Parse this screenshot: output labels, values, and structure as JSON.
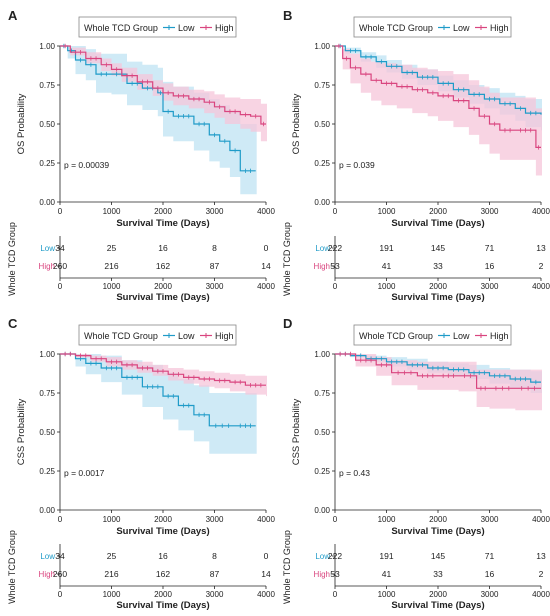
{
  "colors": {
    "low": "#1f9bc8",
    "high": "#d9457f",
    "low_band": "#bfe3f3",
    "high_band": "#f6c6d9",
    "axis": "#222222"
  },
  "chart_data": [
    {
      "panel": "A",
      "type": "line",
      "legend_title": "Whole TCD Group",
      "legend_items": [
        "Low",
        "High"
      ],
      "legend_position": "top",
      "ylabel": "OS Probability",
      "xlabel": "Survival Time (Days)",
      "xlim": [
        0,
        4000
      ],
      "ylim": [
        0,
        1
      ],
      "xticks": [
        "0",
        "1000",
        "2000",
        "3000",
        "4000"
      ],
      "yticks": [
        "0.00",
        "0.25",
        "0.50",
        "0.75",
        "1.00"
      ],
      "pvalue": "p = 0.00039",
      "series": [
        {
          "name": "Low",
          "x": [
            0,
            150,
            300,
            500,
            700,
            1000,
            1300,
            1600,
            1900,
            2000,
            2200,
            2600,
            2900,
            3100,
            3300,
            3500,
            3800
          ],
          "y": [
            1.0,
            0.97,
            0.91,
            0.88,
            0.82,
            0.82,
            0.76,
            0.73,
            0.7,
            0.58,
            0.55,
            0.5,
            0.43,
            0.39,
            0.33,
            0.2,
            0.2
          ],
          "lower": [
            1.0,
            0.92,
            0.82,
            0.78,
            0.7,
            0.69,
            0.62,
            0.59,
            0.55,
            0.42,
            0.39,
            0.33,
            0.26,
            0.22,
            0.16,
            0.05,
            0.05
          ],
          "upper": [
            1.0,
            1.0,
            1.0,
            0.98,
            0.95,
            0.95,
            0.9,
            0.88,
            0.86,
            0.77,
            0.74,
            0.7,
            0.66,
            0.62,
            0.58,
            0.5,
            0.5
          ]
        },
        {
          "name": "High",
          "x": [
            0,
            200,
            500,
            800,
            1000,
            1200,
            1500,
            1800,
            2000,
            2200,
            2500,
            2800,
            3000,
            3200,
            3500,
            3700,
            3900,
            4000
          ],
          "y": [
            1.0,
            0.96,
            0.92,
            0.88,
            0.85,
            0.81,
            0.77,
            0.73,
            0.7,
            0.68,
            0.66,
            0.64,
            0.61,
            0.58,
            0.56,
            0.55,
            0.5,
            0.5
          ],
          "lower": [
            1.0,
            0.94,
            0.89,
            0.84,
            0.81,
            0.77,
            0.72,
            0.68,
            0.65,
            0.62,
            0.6,
            0.57,
            0.54,
            0.5,
            0.47,
            0.45,
            0.39,
            0.39
          ],
          "upper": [
            1.0,
            0.99,
            0.96,
            0.92,
            0.89,
            0.86,
            0.82,
            0.78,
            0.76,
            0.74,
            0.72,
            0.71,
            0.69,
            0.67,
            0.66,
            0.66,
            0.63,
            0.63
          ]
        }
      ],
      "risk_table": {
        "ylabel": "Whole TCD Group",
        "xlabel": "Survival Time (Days)",
        "rows": [
          {
            "label": "Low",
            "counts": [
              "34",
              "25",
              "16",
              "8",
              "0"
            ]
          },
          {
            "label": "High",
            "counts": [
              "260",
              "216",
              "162",
              "87",
              "14"
            ]
          }
        ]
      }
    },
    {
      "panel": "B",
      "type": "line",
      "legend_title": "Whole TCD Group",
      "legend_items": [
        "Low",
        "High"
      ],
      "legend_position": "top",
      "ylabel": "OS Probability",
      "xlabel": "Survival Time (Days)",
      "xlim": [
        0,
        4000
      ],
      "ylim": [
        0,
        1
      ],
      "xticks": [
        "0",
        "1000",
        "2000",
        "3000",
        "4000"
      ],
      "yticks": [
        "0.00",
        "0.25",
        "0.50",
        "0.75",
        "1.00"
      ],
      "pvalue": "p = 0.039",
      "series": [
        {
          "name": "Low",
          "x": [
            0,
            200,
            500,
            800,
            1000,
            1300,
            1600,
            2000,
            2300,
            2600,
            2900,
            3200,
            3500,
            3700,
            4000
          ],
          "y": [
            1.0,
            0.97,
            0.93,
            0.9,
            0.87,
            0.83,
            0.8,
            0.76,
            0.72,
            0.69,
            0.66,
            0.63,
            0.6,
            0.57,
            0.56
          ],
          "lower": [
            1.0,
            0.95,
            0.9,
            0.86,
            0.83,
            0.79,
            0.75,
            0.71,
            0.67,
            0.63,
            0.6,
            0.56,
            0.52,
            0.48,
            0.46
          ],
          "upper": [
            1.0,
            0.99,
            0.96,
            0.94,
            0.91,
            0.88,
            0.85,
            0.81,
            0.78,
            0.75,
            0.73,
            0.7,
            0.68,
            0.66,
            0.66
          ]
        },
        {
          "name": "High",
          "x": [
            0,
            150,
            300,
            500,
            700,
            900,
            1200,
            1500,
            1800,
            2000,
            2300,
            2600,
            2800,
            3000,
            3200,
            3500,
            3900,
            4000
          ],
          "y": [
            1.0,
            0.92,
            0.86,
            0.82,
            0.78,
            0.76,
            0.74,
            0.72,
            0.7,
            0.68,
            0.65,
            0.6,
            0.55,
            0.5,
            0.46,
            0.46,
            0.35,
            0.35
          ],
          "lower": [
            1.0,
            0.85,
            0.76,
            0.7,
            0.65,
            0.62,
            0.6,
            0.57,
            0.55,
            0.52,
            0.48,
            0.43,
            0.37,
            0.31,
            0.27,
            0.27,
            0.17,
            0.17
          ],
          "upper": [
            1.0,
            0.98,
            0.95,
            0.92,
            0.9,
            0.89,
            0.88,
            0.86,
            0.85,
            0.84,
            0.82,
            0.78,
            0.74,
            0.7,
            0.67,
            0.67,
            0.6,
            0.6
          ]
        }
      ],
      "risk_table": {
        "ylabel": "Whole TCD Group",
        "xlabel": "Survival Time (Days)",
        "rows": [
          {
            "label": "Low",
            "counts": [
              "222",
              "191",
              "145",
              "71",
              "13"
            ]
          },
          {
            "label": "High",
            "counts": [
              "53",
              "41",
              "33",
              "16",
              "2"
            ]
          }
        ]
      }
    },
    {
      "panel": "C",
      "type": "line",
      "legend_title": "Whole TCD Group",
      "legend_items": [
        "Low",
        "High"
      ],
      "legend_position": "top",
      "ylabel": "CSS Probability",
      "xlabel": "Survival Time (Days)",
      "xlim": [
        0,
        4000
      ],
      "ylim": [
        0,
        1
      ],
      "xticks": [
        "0",
        "1000",
        "2000",
        "3000",
        "4000"
      ],
      "yticks": [
        "0.00",
        "0.25",
        "0.50",
        "0.75",
        "1.00"
      ],
      "pvalue": "p = 0.0017",
      "series": [
        {
          "name": "Low",
          "x": [
            0,
            300,
            500,
            800,
            1200,
            1600,
            2000,
            2300,
            2600,
            2900,
            3400,
            3800
          ],
          "y": [
            1.0,
            0.97,
            0.94,
            0.91,
            0.85,
            0.79,
            0.73,
            0.67,
            0.61,
            0.54,
            0.54,
            0.54
          ],
          "lower": [
            1.0,
            0.92,
            0.87,
            0.82,
            0.74,
            0.66,
            0.58,
            0.51,
            0.44,
            0.36,
            0.36,
            0.36
          ],
          "upper": [
            1.0,
            1.0,
            1.0,
            0.99,
            0.96,
            0.93,
            0.88,
            0.84,
            0.8,
            0.75,
            0.75,
            0.75
          ]
        },
        {
          "name": "High",
          "x": [
            0,
            300,
            600,
            900,
            1200,
            1500,
            1800,
            2100,
            2400,
            2700,
            3000,
            3300,
            3600,
            4000
          ],
          "y": [
            1.0,
            0.99,
            0.97,
            0.95,
            0.93,
            0.91,
            0.89,
            0.87,
            0.85,
            0.84,
            0.83,
            0.82,
            0.8,
            0.8
          ],
          "lower": [
            1.0,
            0.98,
            0.95,
            0.92,
            0.9,
            0.88,
            0.86,
            0.83,
            0.81,
            0.79,
            0.78,
            0.76,
            0.74,
            0.73
          ],
          "upper": [
            1.0,
            1.0,
            0.99,
            0.98,
            0.96,
            0.95,
            0.93,
            0.91,
            0.9,
            0.89,
            0.88,
            0.87,
            0.86,
            0.86
          ]
        }
      ],
      "risk_table": {
        "ylabel": "Whole TCD Group",
        "xlabel": "Survival Time (Days)",
        "rows": [
          {
            "label": "Low",
            "counts": [
              "34",
              "25",
              "16",
              "8",
              "0"
            ]
          },
          {
            "label": "High",
            "counts": [
              "260",
              "216",
              "162",
              "87",
              "14"
            ]
          }
        ]
      }
    },
    {
      "panel": "D",
      "type": "line",
      "legend_title": "Whole TCD Group",
      "legend_items": [
        "Low",
        "High"
      ],
      "legend_position": "top",
      "ylabel": "CSS Probability",
      "xlabel": "Survival Time (Days)",
      "xlim": [
        0,
        4000
      ],
      "ylim": [
        0,
        1
      ],
      "xticks": [
        "0",
        "1000",
        "2000",
        "3000",
        "4000"
      ],
      "yticks": [
        "0.00",
        "0.25",
        "0.50",
        "0.75",
        "1.00"
      ],
      "pvalue": "p = 0.43",
      "series": [
        {
          "name": "Low",
          "x": [
            0,
            300,
            600,
            1000,
            1400,
            1800,
            2200,
            2600,
            3000,
            3400,
            3800,
            4000
          ],
          "y": [
            1.0,
            0.99,
            0.97,
            0.95,
            0.93,
            0.91,
            0.9,
            0.88,
            0.86,
            0.84,
            0.82,
            0.82
          ],
          "lower": [
            1.0,
            0.98,
            0.95,
            0.92,
            0.9,
            0.88,
            0.86,
            0.84,
            0.81,
            0.78,
            0.75,
            0.75
          ],
          "upper": [
            1.0,
            1.0,
            0.99,
            0.98,
            0.97,
            0.95,
            0.94,
            0.93,
            0.91,
            0.9,
            0.89,
            0.89
          ]
        },
        {
          "name": "High",
          "x": [
            0,
            400,
            800,
            1100,
            1600,
            2000,
            2400,
            2750,
            3000,
            3500,
            4000
          ],
          "y": [
            1.0,
            0.96,
            0.93,
            0.88,
            0.86,
            0.86,
            0.86,
            0.78,
            0.78,
            0.78,
            0.78
          ],
          "lower": [
            1.0,
            0.92,
            0.86,
            0.8,
            0.77,
            0.77,
            0.76,
            0.66,
            0.65,
            0.64,
            0.64
          ],
          "upper": [
            1.0,
            1.0,
            0.98,
            0.96,
            0.95,
            0.95,
            0.95,
            0.9,
            0.9,
            0.9,
            0.9
          ]
        }
      ],
      "risk_table": {
        "ylabel": "Whole TCD Group",
        "xlabel": "Survival Time (Days)",
        "rows": [
          {
            "label": "Low",
            "counts": [
              "222",
              "191",
              "145",
              "71",
              "13"
            ]
          },
          {
            "label": "High",
            "counts": [
              "53",
              "41",
              "33",
              "16",
              "2"
            ]
          }
        ]
      }
    }
  ]
}
